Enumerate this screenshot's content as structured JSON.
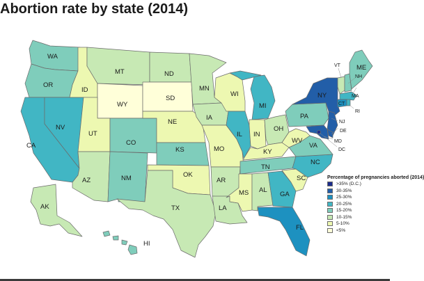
{
  "title": "Abortion rate by state (2014)",
  "legend": {
    "title": "Percentage of pregnancies aborted (2014)",
    "items": [
      {
        "label": ">35% (D.C.)",
        "color": "#1b2c8c"
      },
      {
        "label": "30-35%",
        "color": "#225ea8"
      },
      {
        "label": "25-30%",
        "color": "#1d91c0"
      },
      {
        "label": "20-25%",
        "color": "#41b6c4"
      },
      {
        "label": "15-20%",
        "color": "#7fcdbb"
      },
      {
        "label": "10-15%",
        "color": "#c7e9b4"
      },
      {
        "label": "5-10%",
        "color": "#edf8b1"
      },
      {
        "label": "<5%",
        "color": "#ffffd9"
      }
    ]
  },
  "states": {
    "WA": {
      "label": "WA",
      "color": "#7fcdbb"
    },
    "OR": {
      "label": "OR",
      "color": "#7fcdbb"
    },
    "CA": {
      "label": "CA",
      "color": "#41b6c4"
    },
    "NV": {
      "label": "NV",
      "color": "#41b6c4"
    },
    "ID": {
      "label": "ID",
      "color": "#edf8b1"
    },
    "MT": {
      "label": "MT",
      "color": "#c7e9b4"
    },
    "WY": {
      "label": "WY",
      "color": "#ffffd9"
    },
    "UT": {
      "label": "UT",
      "color": "#edf8b1"
    },
    "AZ": {
      "label": "AZ",
      "color": "#c7e9b4"
    },
    "CO": {
      "label": "CO",
      "color": "#7fcdbb"
    },
    "NM": {
      "label": "NM",
      "color": "#7fcdbb"
    },
    "ND": {
      "label": "ND",
      "color": "#c7e9b4"
    },
    "SD": {
      "label": "SD",
      "color": "#ffffd9"
    },
    "NE": {
      "label": "NE",
      "color": "#edf8b1"
    },
    "KS": {
      "label": "KS",
      "color": "#7fcdbb"
    },
    "OK": {
      "label": "OK",
      "color": "#edf8b1"
    },
    "TX": {
      "label": "TX",
      "color": "#c7e9b4"
    },
    "MN": {
      "label": "MN",
      "color": "#c7e9b4"
    },
    "IA": {
      "label": "IA",
      "color": "#c7e9b4"
    },
    "MO": {
      "label": "MO",
      "color": "#edf8b1"
    },
    "AR": {
      "label": "AR",
      "color": "#c7e9b4"
    },
    "LA": {
      "label": "LA",
      "color": "#c7e9b4"
    },
    "WI": {
      "label": "WI",
      "color": "#edf8b1"
    },
    "IL": {
      "label": "IL",
      "color": "#41b6c4"
    },
    "MI": {
      "label": "MI",
      "color": "#41b6c4"
    },
    "IN": {
      "label": "IN",
      "color": "#edf8b1"
    },
    "OH": {
      "label": "OH",
      "color": "#c7e9b4"
    },
    "KY": {
      "label": "KY",
      "color": "#edf8b1"
    },
    "TN": {
      "label": "TN",
      "color": "#7fcdbb"
    },
    "MS": {
      "label": "MS",
      "color": "#edf8b1"
    },
    "AL": {
      "label": "AL",
      "color": "#c7e9b4"
    },
    "GA": {
      "label": "GA",
      "color": "#41b6c4"
    },
    "FL": {
      "label": "FL",
      "color": "#1d91c0"
    },
    "SC": {
      "label": "SC",
      "color": "#edf8b1"
    },
    "NC": {
      "label": "NC",
      "color": "#41b6c4"
    },
    "VA": {
      "label": "VA",
      "color": "#7fcdbb"
    },
    "WV": {
      "label": "WV",
      "color": "#edf8b1"
    },
    "PA": {
      "label": "PA",
      "color": "#7fcdbb"
    },
    "NY": {
      "label": "NY",
      "color": "#225ea8"
    },
    "VT": {
      "label": "VT",
      "color": "#c7e9b4"
    },
    "NH": {
      "label": "NH",
      "color": "#7fcdbb"
    },
    "ME": {
      "label": "ME",
      "color": "#7fcdbb"
    },
    "MA": {
      "label": "MA",
      "color": "#41b6c4"
    },
    "RI": {
      "label": "RI",
      "color": "#41b6c4"
    },
    "CT": {
      "label": "CT",
      "color": "#1d91c0"
    },
    "NJ": {
      "label": "NJ",
      "color": "#225ea8"
    },
    "DE": {
      "label": "DE",
      "color": "#225ea8"
    },
    "MD": {
      "label": "MD",
      "color": "#225ea8"
    },
    "DC": {
      "label": "DC",
      "color": "#1b2c8c"
    },
    "AK": {
      "label": "AK",
      "color": "#c7e9b4"
    },
    "HI": {
      "label": "HI",
      "color": "#7fcdbb"
    }
  }
}
